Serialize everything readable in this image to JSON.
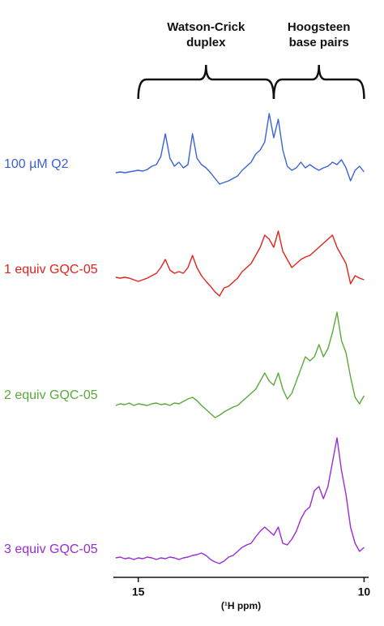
{
  "chart_data": {
    "type": "line",
    "x_label": "(¹H ppm)",
    "xlim": [
      15.55,
      9.9
    ],
    "xticks": [
      15,
      10
    ],
    "regions": [
      {
        "label_lines": [
          "Watson-Crick",
          "duplex"
        ],
        "from": 15,
        "to": 12
      },
      {
        "label_lines": [
          "Hoogsteen",
          "base pairs"
        ],
        "from": 12,
        "to": 10
      }
    ],
    "x": [
      15.5,
      15.4,
      15.3,
      15.2,
      15.1,
      15.0,
      14.9,
      14.8,
      14.7,
      14.6,
      14.5,
      14.4,
      14.3,
      14.2,
      14.1,
      14.0,
      13.9,
      13.8,
      13.7,
      13.6,
      13.5,
      13.4,
      13.3,
      13.2,
      13.1,
      13.0,
      12.9,
      12.8,
      12.7,
      12.6,
      12.5,
      12.4,
      12.3,
      12.2,
      12.1,
      12.0,
      11.9,
      11.8,
      11.7,
      11.6,
      11.5,
      11.4,
      11.3,
      11.2,
      11.1,
      11.0,
      10.9,
      10.8,
      10.7,
      10.6,
      10.5,
      10.4,
      10.3,
      10.2,
      10.1,
      10.0
    ],
    "series": [
      {
        "name": "100 µM Q2",
        "color": "#3a63d8",
        "values": [
          2,
          3,
          2,
          3,
          4,
          5,
          4,
          6,
          10,
          12,
          22,
          50,
          20,
          10,
          15,
          8,
          12,
          50,
          20,
          12,
          8,
          2,
          -5,
          -12,
          -10,
          -8,
          -5,
          -2,
          5,
          10,
          15,
          25,
          30,
          40,
          75,
          45,
          68,
          30,
          10,
          5,
          8,
          15,
          8,
          12,
          8,
          5,
          8,
          10,
          15,
          12,
          18,
          8,
          -8,
          5,
          10,
          3
        ]
      },
      {
        "name": "1 equiv GQC-05",
        "color": "#e2231a",
        "values": [
          3,
          2,
          3,
          2,
          0,
          -2,
          0,
          2,
          5,
          8,
          15,
          25,
          12,
          8,
          10,
          8,
          15,
          30,
          15,
          5,
          -2,
          -8,
          -15,
          -20,
          -10,
          -8,
          -3,
          2,
          10,
          15,
          20,
          30,
          40,
          55,
          50,
          40,
          60,
          35,
          25,
          15,
          20,
          25,
          28,
          30,
          35,
          40,
          45,
          50,
          55,
          40,
          30,
          20,
          -5,
          5,
          2,
          0
        ]
      },
      {
        "name": "2 equiv GQC-05",
        "color": "#5aaa3a",
        "values": [
          0,
          2,
          1,
          3,
          0,
          2,
          1,
          0,
          2,
          3,
          1,
          2,
          0,
          3,
          2,
          5,
          8,
          10,
          6,
          0,
          -5,
          -10,
          -15,
          -12,
          -8,
          -5,
          -2,
          0,
          5,
          10,
          15,
          20,
          30,
          40,
          30,
          25,
          40,
          20,
          8,
          15,
          30,
          45,
          60,
          55,
          60,
          75,
          60,
          70,
          90,
          115,
          80,
          65,
          35,
          10,
          2,
          12
        ]
      },
      {
        "name": "3 equiv GQC-05",
        "color": "#9b2bd6",
        "values": [
          2,
          3,
          1,
          2,
          0,
          2,
          1,
          3,
          2,
          0,
          2,
          1,
          3,
          2,
          0,
          2,
          3,
          5,
          6,
          8,
          5,
          0,
          -3,
          -5,
          -2,
          3,
          5,
          10,
          15,
          18,
          20,
          28,
          35,
          40,
          35,
          30,
          40,
          20,
          18,
          25,
          35,
          50,
          60,
          65,
          85,
          90,
          75,
          90,
          120,
          150,
          110,
          80,
          40,
          20,
          10,
          15
        ]
      }
    ]
  }
}
